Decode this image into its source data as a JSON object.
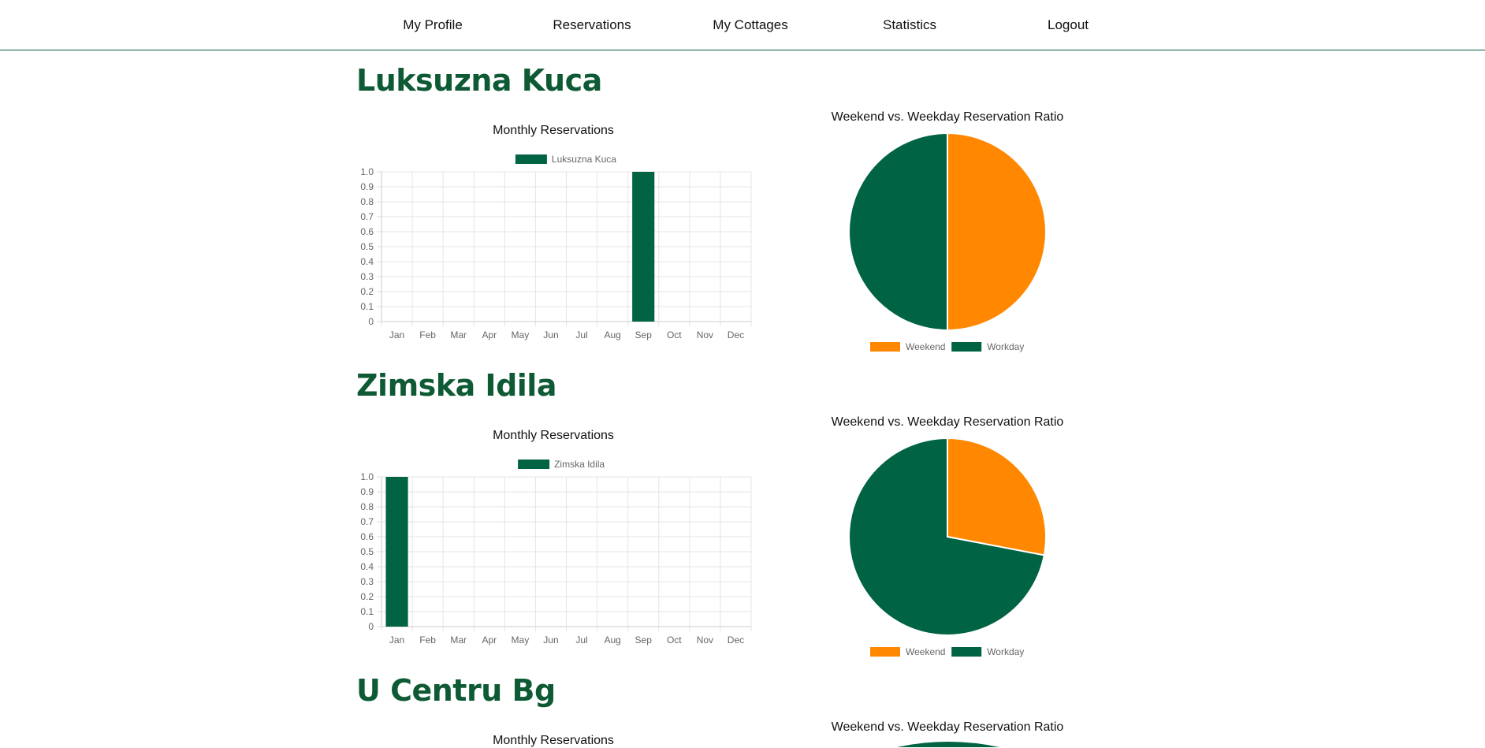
{
  "nav": {
    "items": [
      {
        "label": "My Profile"
      },
      {
        "label": "Reservations"
      },
      {
        "label": "My Cottages"
      },
      {
        "label": "Statistics"
      },
      {
        "label": "Logout"
      }
    ]
  },
  "colors": {
    "primary": "#006344",
    "accent": "#ff8800",
    "heading": "#0d5a34",
    "grid": "#e5e5e5"
  },
  "cottages": [
    {
      "name": "Luksuzna Kuca",
      "bar_title": "Monthly Reservations",
      "pie_title": "Weekend vs. Weekday Reservation Ratio"
    },
    {
      "name": "Zimska Idila",
      "bar_title": "Monthly Reservations",
      "pie_title": "Weekend vs. Weekday Reservation Ratio"
    },
    {
      "name": "U Centru Bg",
      "bar_title": "Monthly Reservations",
      "pie_title": "Weekend vs. Weekday Reservation Ratio"
    }
  ],
  "chart_data": [
    {
      "type": "bar",
      "title": "Monthly Reservations",
      "categories": [
        "Jan",
        "Feb",
        "Mar",
        "Apr",
        "May",
        "Jun",
        "Jul",
        "Aug",
        "Sep",
        "Oct",
        "Nov",
        "Dec"
      ],
      "series": [
        {
          "name": "Luksuzna Kuca",
          "values": [
            0,
            0,
            0,
            0,
            0,
            0,
            0,
            0,
            1,
            0,
            0,
            0
          ]
        }
      ],
      "ylim": [
        0,
        1.0
      ],
      "yticks": [
        "1.0",
        "0.9",
        "0.8",
        "0.7",
        "0.6",
        "0.5",
        "0.4",
        "0.3",
        "0.2",
        "0.1",
        "0"
      ],
      "grid": true,
      "legend": "top"
    },
    {
      "type": "pie",
      "title": "Weekend vs. Weekday Reservation Ratio",
      "labels": [
        "Weekend",
        "Workday"
      ],
      "values": [
        50,
        50
      ],
      "legend": "bottom"
    },
    {
      "type": "bar",
      "title": "Monthly Reservations",
      "categories": [
        "Jan",
        "Feb",
        "Mar",
        "Apr",
        "May",
        "Jun",
        "Jul",
        "Aug",
        "Sep",
        "Oct",
        "Nov",
        "Dec"
      ],
      "series": [
        {
          "name": "Zimska Idila",
          "values": [
            1,
            0,
            0,
            0,
            0,
            0,
            0,
            0,
            0,
            0,
            0,
            0
          ]
        }
      ],
      "ylim": [
        0,
        1.0
      ],
      "yticks": [
        "1.0",
        "0.9",
        "0.8",
        "0.7",
        "0.6",
        "0.5",
        "0.4",
        "0.3",
        "0.2",
        "0.1",
        "0"
      ],
      "grid": true,
      "legend": "top"
    },
    {
      "type": "pie",
      "title": "Weekend vs. Weekday Reservation Ratio",
      "labels": [
        "Weekend",
        "Workday"
      ],
      "values": [
        28,
        72
      ],
      "legend": "bottom"
    }
  ]
}
